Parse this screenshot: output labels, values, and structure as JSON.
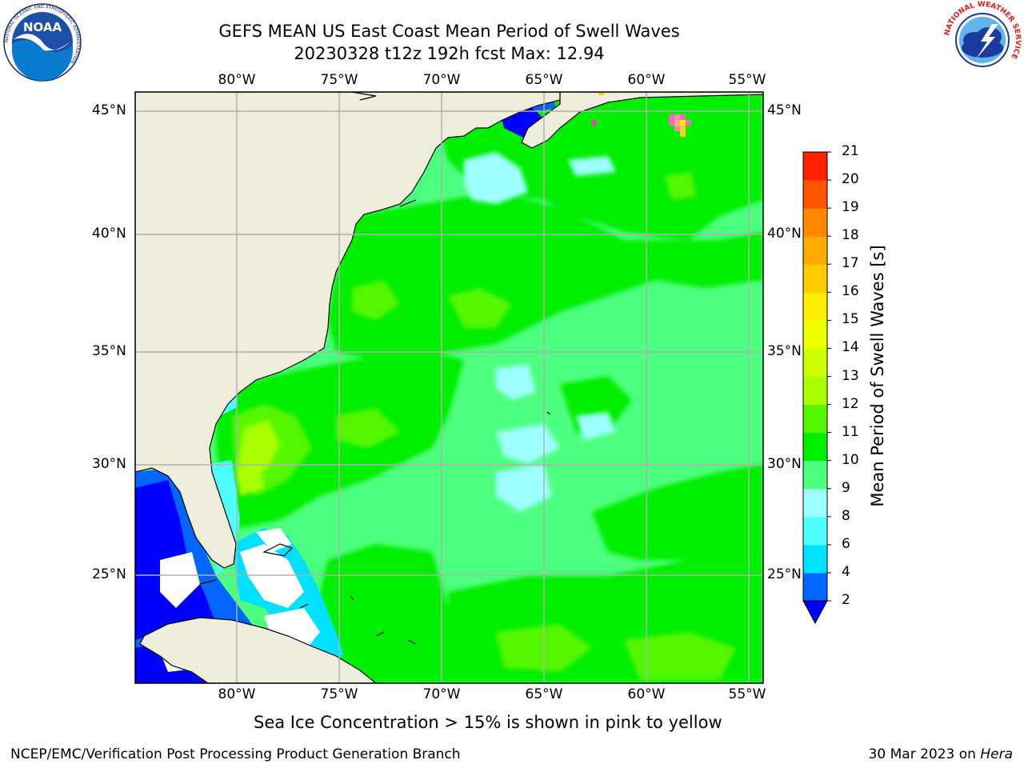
{
  "header": {
    "title_line1": "GEFS MEAN US East Coast Mean Period of Swell Waves",
    "title_line2": "20230328 t12z 192h fcst   Max: 12.94"
  },
  "map": {
    "lon_labels": [
      "80°W",
      "75°W",
      "70°W",
      "65°W",
      "60°W",
      "55°W"
    ],
    "lat_labels": [
      "45°N",
      "40°N",
      "35°N",
      "30°N",
      "25°N"
    ],
    "extent": {
      "lon_min": -84.9,
      "lon_max": -54.4,
      "lat_min": 20.5,
      "lat_max": 45.9
    },
    "colors": {
      "land": "#efeedd",
      "grid": "#b0b0b0",
      "coast": "#000000"
    }
  },
  "colorbar": {
    "title": "Mean Period of Swell Waves [s]",
    "ticks": [
      "2",
      "4",
      "6",
      "8",
      "9",
      "10",
      "11",
      "12",
      "13",
      "14",
      "15",
      "16",
      "17",
      "18",
      "19",
      "20",
      "21"
    ],
    "colors": [
      "#0066ff",
      "#00e0ff",
      "#4dffff",
      "#9effff",
      "#4dff7e",
      "#00ee00",
      "#55f700",
      "#aaff00",
      "#ccff00",
      "#eeff00",
      "#ffee00",
      "#ffcc00",
      "#ffaa00",
      "#ff8800",
      "#ff5500",
      "#ff2200",
      "#ff0000"
    ],
    "under_color": "#0000ff"
  },
  "notes": {
    "ice": "Sea Ice Concentration > 15% is shown in pink to yellow"
  },
  "footer": {
    "left": "NCEP/EMC/Verification Post Processing Product Generation Branch",
    "date": "30 Mar 2023 on ",
    "machine": "Hera"
  },
  "logos": {
    "noaa": {
      "text": "NOAA",
      "ring_text": "NATIONAL OCEANIC AND ATMOSPHERIC ADMINISTRATION",
      "ring_text_bottom": "U.S. DEPARTMENT OF COMMERCE"
    },
    "nws": {
      "ring_text": "NATIONAL WEATHER SERVICE"
    }
  }
}
